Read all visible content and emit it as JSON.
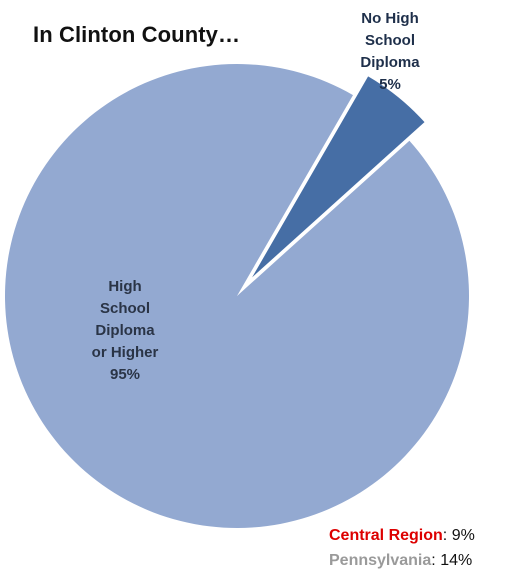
{
  "chart_data": {
    "type": "pie",
    "title": "In Clinton County…",
    "series": [
      {
        "values": [
          95,
          5
        ]
      }
    ],
    "categories": [
      "High School Diploma or Higher",
      "No High School Diploma"
    ],
    "slices": [
      {
        "label_lines": [
          "High",
          "School",
          "Diploma",
          "or Higher",
          "95%"
        ],
        "value": 95,
        "color": "#93a9d1",
        "exploded": false
      },
      {
        "label_lines": [
          "No High",
          "School",
          "Diploma",
          "5%"
        ],
        "value": 5,
        "color": "#466ea5",
        "exploded": true
      }
    ],
    "annotations": [
      {
        "name": "Central Region",
        "sep": ":",
        "value": "9%",
        "name_color": "#dd0000"
      },
      {
        "name": "Pennsylvania",
        "sep": ":",
        "value": "14%",
        "name_color": "#9a9a9a"
      }
    ],
    "legend": "none",
    "grid": false
  }
}
